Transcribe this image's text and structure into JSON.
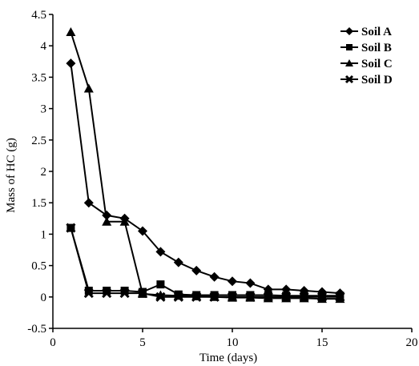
{
  "chart_data": {
    "type": "line",
    "title": "",
    "xlabel": "Time (days)",
    "ylabel": "Mass of HC (g)",
    "xlim": [
      0,
      20
    ],
    "ylim": [
      -0.5,
      4.5
    ],
    "x_ticks": [
      0,
      5,
      10,
      15,
      20
    ],
    "y_ticks": [
      -0.5,
      0,
      0.5,
      1,
      1.5,
      2,
      2.5,
      3,
      3.5,
      4,
      4.5
    ],
    "x_tick_labels": [
      "0",
      "5",
      "10",
      "15",
      "20"
    ],
    "y_tick_labels": [
      "-0.5",
      "0",
      "0.5",
      "1",
      "1.5",
      "2",
      "2.5",
      "3",
      "3.5",
      "4",
      "4.5"
    ],
    "grid": false,
    "legend_position": "top-right",
    "series": [
      {
        "name": "Soil A",
        "marker": "diamond",
        "x": [
          1,
          2,
          3,
          4,
          5,
          6,
          7,
          8,
          9,
          10,
          11,
          12,
          13,
          14,
          15,
          16
        ],
        "y": [
          3.72,
          1.5,
          1.3,
          1.25,
          1.05,
          0.72,
          0.55,
          0.42,
          0.32,
          0.25,
          0.22,
          0.12,
          0.12,
          0.1,
          0.08,
          0.06
        ]
      },
      {
        "name": "Soil B",
        "marker": "square",
        "x": [
          1,
          2,
          3,
          4,
          5,
          6,
          7,
          8,
          9,
          10,
          11,
          12,
          13,
          14,
          15,
          16
        ],
        "y": [
          1.1,
          0.1,
          0.1,
          0.1,
          0.08,
          0.2,
          0.04,
          0.03,
          0.03,
          0.03,
          0.03,
          0.03,
          0.02,
          0.02,
          0.02,
          0.02
        ]
      },
      {
        "name": "Soil C",
        "marker": "triangle",
        "x": [
          1,
          2,
          3,
          4,
          5,
          6,
          7,
          8,
          9,
          10,
          11,
          12,
          13,
          14,
          15,
          16
        ],
        "y": [
          4.22,
          3.32,
          1.2,
          1.2,
          0.05,
          0.03,
          0.02,
          0.01,
          0.0,
          -0.01,
          -0.01,
          -0.02,
          -0.02,
          -0.02,
          -0.03,
          -0.03
        ]
      },
      {
        "name": "Soil D",
        "marker": "x",
        "x": [
          1,
          2,
          3,
          4,
          5,
          6,
          7,
          8,
          9,
          10,
          11,
          12,
          13,
          14,
          15,
          16
        ],
        "y": [
          1.1,
          0.06,
          0.06,
          0.06,
          0.06,
          0.0,
          0.0,
          0.0,
          0.0,
          0.0,
          0.0,
          0.0,
          0.0,
          0.0,
          0.0,
          0.0
        ]
      }
    ]
  }
}
